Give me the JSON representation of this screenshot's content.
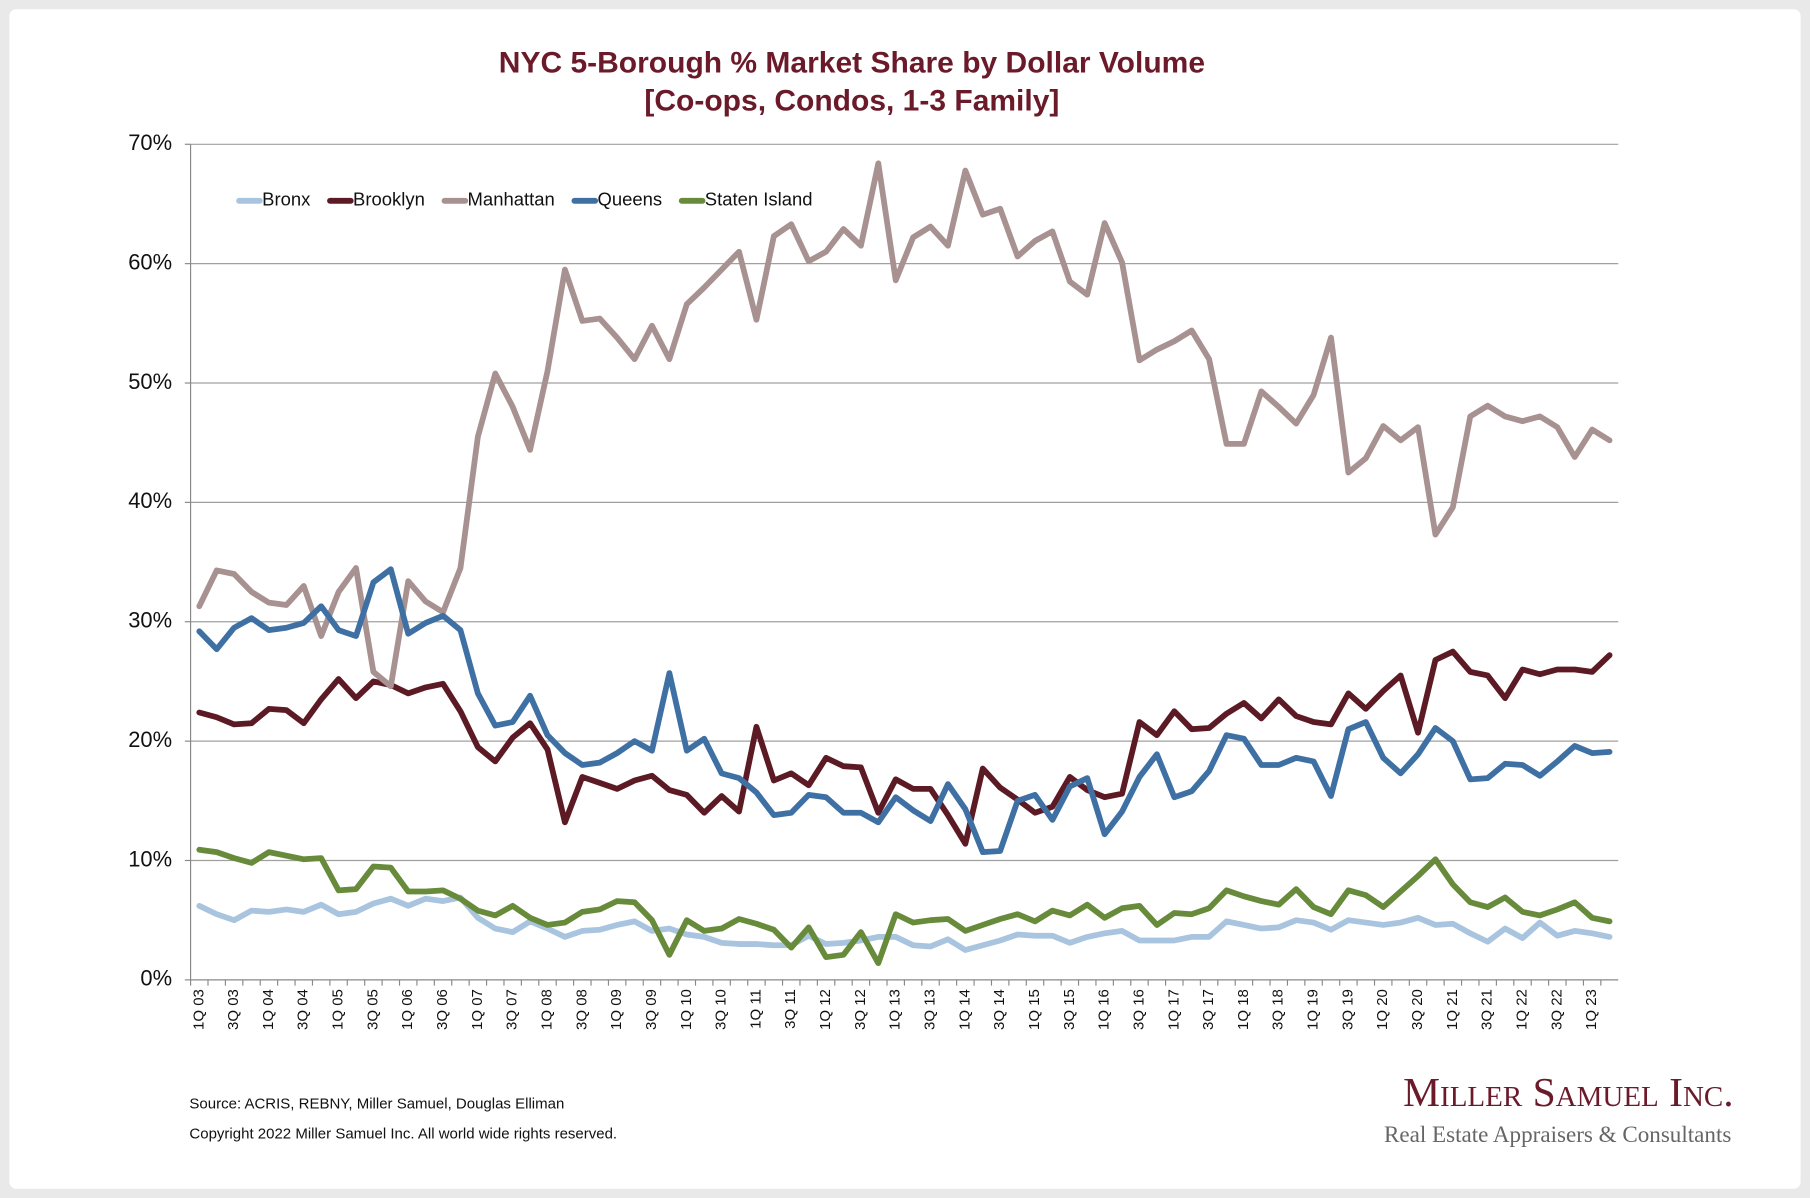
{
  "chart_data": {
    "type": "line",
    "title": "NYC 5-Borough % Market Share by Dollar Volume",
    "subtitle": "[Co-ops, Condos, 1-3 Family]",
    "categories": [
      "1Q 03",
      null,
      "3Q 03",
      null,
      "1Q 04",
      null,
      "3Q 04",
      null,
      "1Q 05",
      null,
      "3Q 05",
      null,
      "1Q 06",
      null,
      "3Q 06",
      null,
      "1Q 07",
      null,
      "3Q 07",
      null,
      "1Q 08",
      null,
      "3Q 08",
      null,
      "1Q 09",
      null,
      "3Q 09",
      null,
      "1Q 10",
      null,
      "3Q 10",
      null,
      "1Q 11",
      null,
      "3Q 11",
      null,
      "1Q 12",
      null,
      "3Q 12",
      null,
      "1Q 13",
      null,
      "3Q 13",
      null,
      "1Q 14",
      null,
      "3Q 14",
      null,
      "1Q 15",
      null,
      "3Q 15",
      null,
      "1Q 16",
      null,
      "3Q 16",
      null,
      "1Q 17",
      null,
      "3Q 17",
      null,
      "1Q 18",
      null,
      "3Q 18",
      null,
      "1Q 19",
      null,
      "3Q 19",
      null,
      "1Q 20",
      null,
      "3Q 20",
      null,
      "1Q 21",
      null,
      "3Q 21",
      null,
      "1Q 22",
      null,
      "3Q 22",
      null,
      "1Q 23",
      null
    ],
    "series": [
      {
        "name": "Bronx",
        "color": "#a9c4de",
        "values": [
          6.2,
          5.5,
          5.0,
          5.8,
          5.7,
          5.9,
          5.7,
          6.3,
          5.5,
          5.7,
          6.4,
          6.8,
          6.2,
          6.8,
          6.6,
          6.9,
          5.2,
          4.3,
          4.0,
          4.9,
          4.3,
          3.6,
          4.1,
          4.2,
          4.6,
          4.9,
          4.1,
          4.3,
          3.8,
          3.6,
          3.1,
          3.0,
          3.0,
          2.9,
          2.9,
          3.7,
          3.0,
          3.1,
          3.3,
          3.6,
          3.6,
          2.9,
          2.8,
          3.4,
          2.5,
          2.9,
          3.3,
          3.8,
          3.7,
          3.7,
          3.1,
          3.6,
          3.9,
          4.1,
          3.3,
          3.3,
          3.3,
          3.6,
          3.6,
          4.9,
          4.6,
          4.3,
          4.4,
          5.0,
          4.8,
          4.2,
          5.0,
          4.8,
          4.6,
          4.8,
          5.2,
          4.6,
          4.7,
          3.9,
          3.2,
          4.3,
          3.5,
          4.8,
          3.7,
          4.1,
          3.9,
          3.6
        ]
      },
      {
        "name": "Brooklyn",
        "color": "#5c1a24",
        "values": [
          22.4,
          22.0,
          21.4,
          21.5,
          22.7,
          22.6,
          21.5,
          23.5,
          25.2,
          23.6,
          25.0,
          24.7,
          24.0,
          24.5,
          24.8,
          22.5,
          19.5,
          18.3,
          20.3,
          21.5,
          19.3,
          13.2,
          17.0,
          16.5,
          16.0,
          16.7,
          17.1,
          15.9,
          15.5,
          14.0,
          15.4,
          14.1,
          21.2,
          16.7,
          17.3,
          16.3,
          18.6,
          17.9,
          17.8,
          14.0,
          16.8,
          16.0,
          16.0,
          13.8,
          11.4,
          17.7,
          16.1,
          15.1,
          14.0,
          14.5,
          17.0,
          15.9,
          15.3,
          15.6,
          21.6,
          20.5,
          22.5,
          21.0,
          21.1,
          22.3,
          23.2,
          21.9,
          23.5,
          22.1,
          21.6,
          21.4,
          24.0,
          22.7,
          24.2,
          25.5,
          20.7,
          26.8,
          27.5,
          25.8,
          25.5,
          23.6,
          26.0,
          25.6,
          26.0,
          26.0,
          25.8,
          27.2
        ]
      },
      {
        "name": "Manhattan",
        "color": "#a89191",
        "values": [
          31.3,
          34.3,
          34.0,
          32.5,
          31.6,
          31.4,
          33.0,
          28.8,
          32.5,
          34.5,
          25.8,
          24.6,
          33.4,
          31.7,
          30.8,
          34.5,
          45.5,
          50.8,
          48.0,
          44.4,
          51.0,
          59.5,
          55.2,
          55.4,
          53.8,
          52.0,
          54.8,
          52.0,
          56.6,
          58.0,
          59.5,
          61.0,
          55.3,
          62.3,
          63.3,
          60.2,
          61.0,
          62.9,
          61.5,
          68.4,
          58.6,
          62.2,
          63.1,
          61.5,
          67.8,
          64.1,
          64.6,
          60.6,
          61.9,
          62.7,
          58.5,
          57.4,
          63.4,
          60.1,
          51.9,
          52.8,
          53.5,
          54.4,
          52.0,
          44.9,
          44.9,
          49.3,
          48.0,
          46.6,
          49.0,
          53.8,
          42.5,
          43.7,
          46.4,
          45.2,
          46.3,
          37.3,
          39.6,
          47.2,
          48.1,
          47.2,
          46.8,
          47.2,
          46.3,
          43.8,
          46.1,
          45.2
        ]
      },
      {
        "name": "Queens",
        "color": "#3f70a4",
        "values": [
          29.2,
          27.7,
          29.5,
          30.3,
          29.3,
          29.5,
          29.9,
          31.3,
          29.3,
          28.8,
          33.3,
          34.4,
          29.0,
          29.9,
          30.5,
          29.3,
          24.0,
          21.3,
          21.6,
          23.8,
          20.5,
          19.0,
          18.0,
          18.2,
          19.0,
          20.0,
          19.2,
          25.7,
          19.2,
          20.2,
          17.3,
          16.9,
          15.7,
          13.8,
          14.0,
          15.5,
          15.3,
          14.0,
          14.0,
          13.2,
          15.3,
          14.2,
          13.3,
          16.4,
          14.3,
          10.7,
          10.8,
          15.0,
          15.5,
          13.4,
          16.2,
          16.9,
          12.2,
          14.1,
          17.0,
          18.9,
          15.3,
          15.8,
          17.5,
          20.5,
          20.2,
          18.0,
          18.0,
          18.6,
          18.3,
          15.4,
          21.0,
          21.6,
          18.6,
          17.3,
          18.9,
          21.1,
          20.0,
          16.8,
          16.9,
          18.1,
          18.0,
          17.1,
          18.3,
          19.6,
          19.0,
          19.1
        ]
      },
      {
        "name": "Staten Island",
        "color": "#688a3b",
        "values": [
          10.9,
          10.7,
          10.2,
          9.8,
          10.7,
          10.4,
          10.1,
          10.2,
          7.5,
          7.6,
          9.5,
          9.4,
          7.4,
          7.4,
          7.5,
          6.8,
          5.8,
          5.4,
          6.2,
          5.2,
          4.6,
          4.8,
          5.7,
          5.9,
          6.6,
          6.5,
          5.0,
          2.1,
          5.0,
          4.1,
          4.3,
          5.1,
          4.7,
          4.2,
          2.7,
          4.4,
          1.9,
          2.1,
          4.0,
          1.4,
          5.5,
          4.8,
          5.0,
          5.1,
          4.1,
          4.6,
          5.1,
          5.5,
          4.9,
          5.8,
          5.4,
          6.3,
          5.2,
          6.0,
          6.2,
          4.6,
          5.6,
          5.5,
          6.0,
          7.5,
          7.0,
          6.6,
          6.3,
          7.6,
          6.1,
          5.5,
          7.5,
          7.1,
          6.1,
          7.4,
          8.7,
          10.1,
          8.0,
          6.5,
          6.1,
          6.9,
          5.7,
          5.4,
          5.9,
          6.5,
          5.2,
          4.9
        ]
      }
    ],
    "ylim": [
      0,
      70
    ],
    "yticks": [
      {
        "value": 0,
        "label": "0%"
      },
      {
        "value": 10,
        "label": "10%"
      },
      {
        "value": 20,
        "label": "20%"
      },
      {
        "value": 30,
        "label": "30%"
      },
      {
        "value": 40,
        "label": "40%"
      },
      {
        "value": 50,
        "label": "50%"
      },
      {
        "value": 60,
        "label": "60%"
      },
      {
        "value": 70,
        "label": "70%"
      }
    ],
    "grid": true,
    "legend": "top-left",
    "source": "Source: ACRIS, REBNY, Miller Samuel, Douglas Elliman",
    "copyright": "Copyright 2022 Miller Samuel Inc.  All world wide rights reserved.",
    "logo": "Miller Samuel Inc.",
    "logo_subtitle": "Real Estate Appraisers & Consultants"
  }
}
